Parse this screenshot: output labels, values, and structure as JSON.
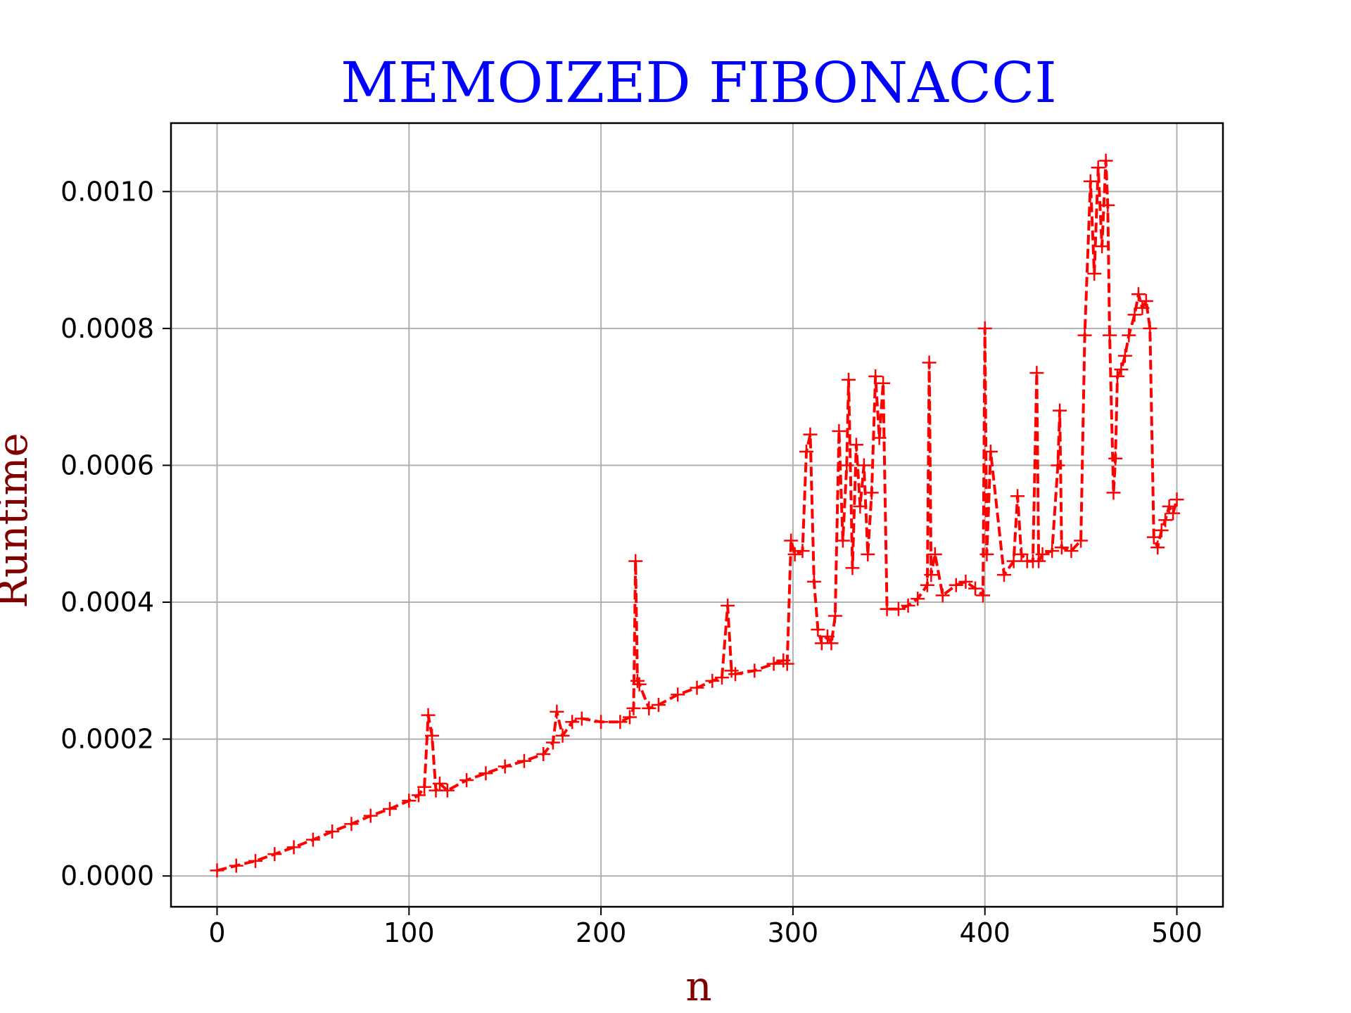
{
  "chart_data": {
    "type": "line",
    "title": "MEMOIZED FIBONACCI",
    "xlabel": "n",
    "ylabel": "Runtime",
    "xlim": [
      -24,
      524
    ],
    "ylim": [
      -4.5e-05,
      0.0011
    ],
    "xticks": [
      0,
      100,
      200,
      300,
      400,
      500
    ],
    "xtick_labels": [
      "0",
      "100",
      "200",
      "300",
      "400",
      "500"
    ],
    "yticks": [
      0.0,
      0.0002,
      0.0004,
      0.0006,
      0.0008,
      0.001
    ],
    "ytick_labels": [
      "0.0000",
      "0.0002",
      "0.0004",
      "0.0006",
      "0.0008",
      "0.0010"
    ],
    "grid": true,
    "legend": "none",
    "colors": {
      "title": "#0000ff",
      "axis_label": "#800000",
      "series": "#ff0000",
      "grid": "#b0b0b0"
    },
    "series": [
      {
        "line_style": "dashed",
        "marker": "plus",
        "x": [
          0,
          10,
          20,
          30,
          40,
          50,
          60,
          70,
          80,
          90,
          100,
          105,
          108,
          110,
          112,
          114,
          116,
          120,
          130,
          140,
          150,
          160,
          170,
          175,
          177,
          180,
          185,
          190,
          200,
          210,
          215,
          217,
          218,
          219,
          220,
          225,
          230,
          240,
          250,
          258,
          263,
          266,
          268,
          270,
          280,
          290,
          295,
          297,
          299,
          301,
          305,
          307,
          309,
          311,
          313,
          315,
          318,
          320,
          322,
          324,
          326,
          328,
          329,
          331,
          333,
          335,
          337,
          339,
          341,
          343,
          345,
          347,
          349,
          355,
          360,
          365,
          370,
          371,
          372,
          374,
          378,
          385,
          390,
          395,
          399,
          400,
          401,
          403,
          410,
          415,
          417,
          419,
          422,
          425,
          427,
          428,
          430,
          435,
          438,
          439,
          440,
          445,
          450,
          452,
          455,
          457,
          459,
          461,
          463,
          464,
          465,
          467,
          468,
          469,
          471,
          473,
          475,
          478,
          480,
          482,
          484,
          486,
          488,
          490,
          492,
          494,
          496,
          498,
          500
        ],
        "y": [
          8e-06,
          1.5e-05,
          2.2e-05,
          3.2e-05,
          4.2e-05,
          5.3e-05,
          6.5e-05,
          7.6e-05,
          8.8e-05,
          9.8e-05,
          0.00011,
          0.000118,
          0.00013,
          0.000235,
          0.000205,
          0.000125,
          0.000135,
          0.000125,
          0.00014,
          0.00015,
          0.00016,
          0.000168,
          0.000178,
          0.000195,
          0.00024,
          0.000205,
          0.000225,
          0.00023,
          0.000225,
          0.000225,
          0.000232,
          0.000245,
          0.00046,
          0.000285,
          0.00028,
          0.000245,
          0.00025,
          0.000265,
          0.000275,
          0.000285,
          0.00029,
          0.000395,
          0.0003,
          0.000295,
          0.0003,
          0.00031,
          0.000315,
          0.00031,
          0.00049,
          0.00047,
          0.000475,
          0.00062,
          0.000645,
          0.00043,
          0.00036,
          0.00034,
          0.00035,
          0.00034,
          0.00038,
          0.00065,
          0.00049,
          0.0006,
          0.000725,
          0.00045,
          0.00063,
          0.00054,
          0.0006,
          0.00047,
          0.00056,
          0.00073,
          0.00064,
          0.00072,
          0.00039,
          0.00039,
          0.000395,
          0.000405,
          0.000425,
          0.00075,
          0.00044,
          0.00047,
          0.00041,
          0.000425,
          0.00043,
          0.00042,
          0.00041,
          0.0008,
          0.00047,
          0.00062,
          0.00044,
          0.00046,
          0.000555,
          0.00047,
          0.00046,
          0.00046,
          0.000735,
          0.00046,
          0.00047,
          0.000475,
          0.0006,
          0.00068,
          0.00048,
          0.000475,
          0.00049,
          0.00079,
          0.001015,
          0.00088,
          0.001035,
          0.00092,
          0.001045,
          0.00098,
          0.00079,
          0.00056,
          0.00061,
          0.00073,
          0.00074,
          0.00076,
          0.00079,
          0.00082,
          0.00085,
          0.00083,
          0.00084,
          0.0008,
          0.000495,
          0.00048,
          0.000505,
          0.00052,
          0.00054,
          0.00053,
          0.00055
        ]
      }
    ]
  }
}
